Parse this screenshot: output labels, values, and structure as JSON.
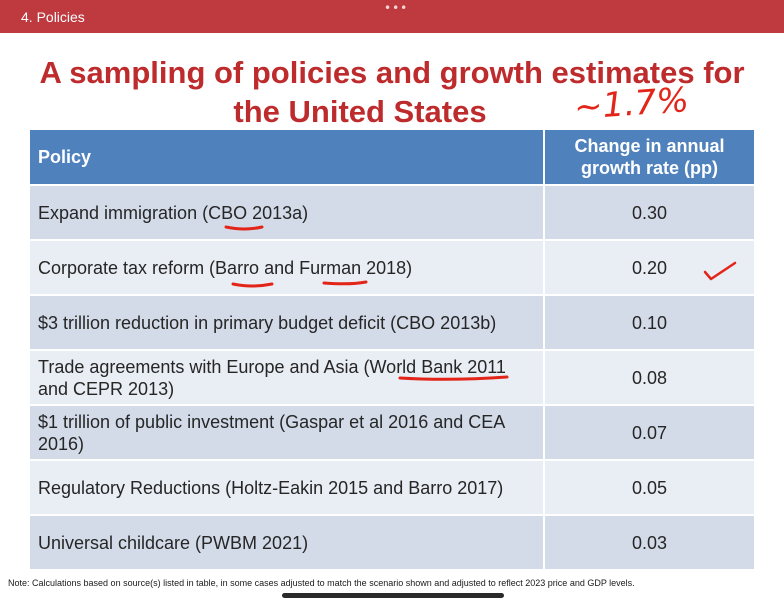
{
  "header": {
    "breadcrumb": "4. Policies",
    "more_icon": "more-dots-icon"
  },
  "slide": {
    "title_line1": "A sampling of policies and growth estimates for",
    "title_line2": "the United States",
    "handwritten_note": "~1.7%"
  },
  "table": {
    "columns": [
      "Policy",
      "Change in annual growth rate (pp)"
    ],
    "rows": [
      {
        "policy": "Expand immigration (CBO 2013a)",
        "value": "0.30"
      },
      {
        "policy": "Corporate tax reform (Barro and Furman 2018)",
        "value": "0.20"
      },
      {
        "policy": "$3 trillion reduction in primary budget deficit (CBO 2013b)",
        "value": "0.10"
      },
      {
        "policy": "Trade agreements with Europe and Asia (World Bank 2011 and CEPR 2013)",
        "value": "0.08"
      },
      {
        "policy": "$1 trillion of public investment (Gaspar et al 2016 and CEA 2016)",
        "value": "0.07"
      },
      {
        "policy": "Regulatory Reductions (Holtz-Eakin 2015 and Barro 2017)",
        "value": "0.05"
      },
      {
        "policy": "Universal childcare (PWBM 2021)",
        "value": "0.03"
      }
    ]
  },
  "footnote": "Note: Calculations based on source(s) listed in table, in some cases adjusted to match the scenario shown and adjusted to reflect 2023 price and GDP levels.",
  "colors": {
    "header_bar": "#be3a3f",
    "title": "#be2b2c",
    "table_header": "#4f81bd",
    "row_dark": "#d3dbe9",
    "row_light": "#e9edf4",
    "ink": "#e32519"
  }
}
